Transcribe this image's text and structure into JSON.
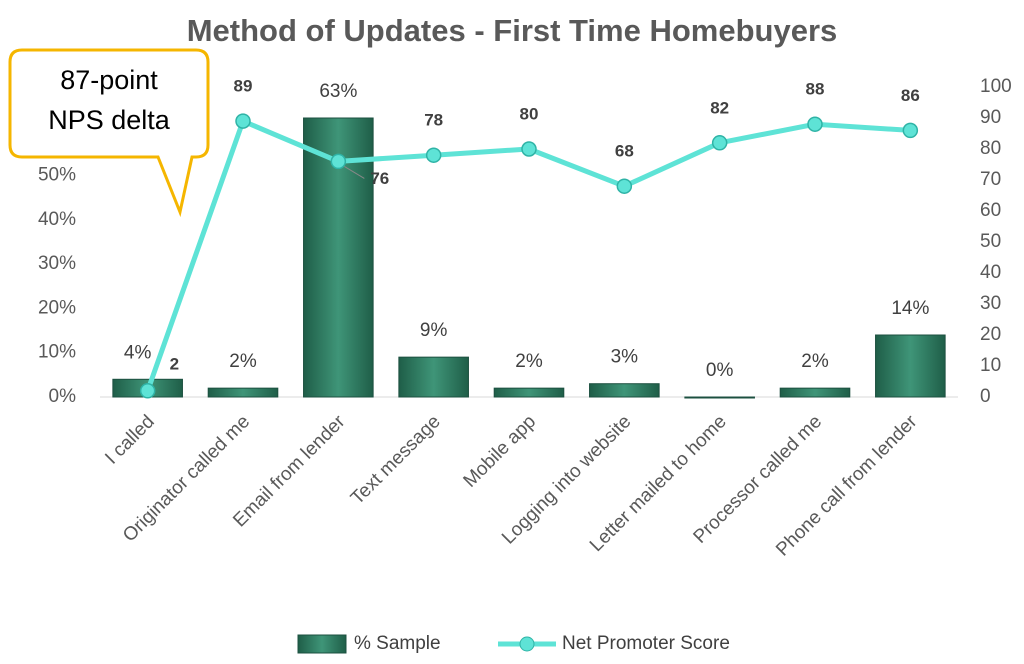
{
  "chart_data": {
    "type": "bar-line",
    "title": "Method of Updates - First Time Homebuyers",
    "categories": [
      "I called",
      "Originator called me",
      "Email from lender",
      "Text message",
      "Mobile app",
      "Logging into website",
      "Letter mailed to home",
      "Processor called me",
      "Phone call from lender"
    ],
    "series": [
      {
        "name": "% Sample",
        "type": "bar",
        "color": "#2f7d62",
        "values": [
          4,
          2,
          63,
          9,
          2,
          3,
          0,
          2,
          14
        ],
        "value_labels": [
          "4%",
          "2%",
          "63%",
          "9%",
          "2%",
          "3%",
          "0%",
          "2%",
          "14%"
        ]
      },
      {
        "name": "Net Promoter Score",
        "type": "line",
        "axis": "y2",
        "color": "#5ee3d6",
        "values": [
          2,
          89,
          76,
          78,
          80,
          68,
          82,
          88,
          86
        ]
      }
    ],
    "ylim": [
      0,
      70
    ],
    "yticks": [
      {
        "value": 0,
        "label": "0%"
      },
      {
        "value": 10,
        "label": "10%"
      },
      {
        "value": 20,
        "label": "20%"
      },
      {
        "value": 30,
        "label": "30%"
      },
      {
        "value": 40,
        "label": "40%"
      },
      {
        "value": 50,
        "label": "50%"
      }
    ],
    "y2lim": [
      0,
      100
    ],
    "y2ticks": [
      0,
      10,
      20,
      30,
      40,
      50,
      60,
      70,
      80,
      90,
      100
    ],
    "grid": false,
    "legend": "bottom",
    "annotation": [
      "87-point",
      "NPS delta"
    ]
  }
}
